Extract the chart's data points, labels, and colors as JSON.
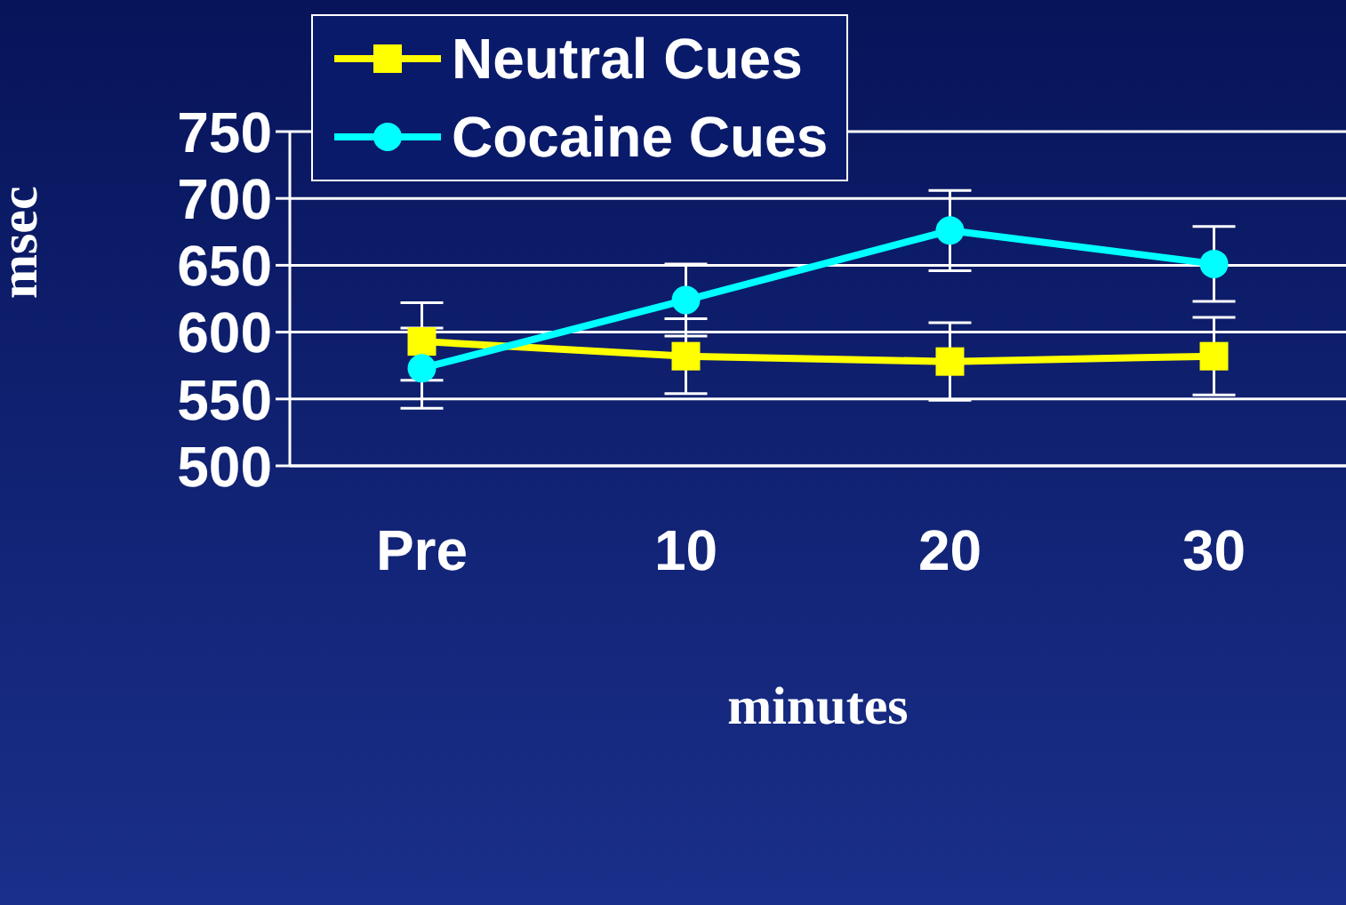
{
  "chart_data": {
    "type": "line",
    "xlabel": "minutes",
    "ylabel": "msec",
    "categories": [
      "Pre",
      "10",
      "20",
      "30"
    ],
    "series": [
      {
        "name": "Neutral Cues",
        "color": "#ffff00",
        "marker": "square",
        "values": [
          593,
          582,
          578,
          582
        ],
        "errors": [
          29,
          28,
          29,
          29
        ]
      },
      {
        "name": "Cocaine Cues",
        "color": "#00ffff",
        "marker": "circle",
        "values": [
          573,
          624,
          676,
          651
        ],
        "errors": [
          30,
          27,
          30,
          28
        ]
      }
    ],
    "ylim": [
      500,
      750
    ],
    "yticks": [
      500,
      550,
      600,
      650,
      700,
      750
    ],
    "grid": "y",
    "legend": "top left"
  }
}
